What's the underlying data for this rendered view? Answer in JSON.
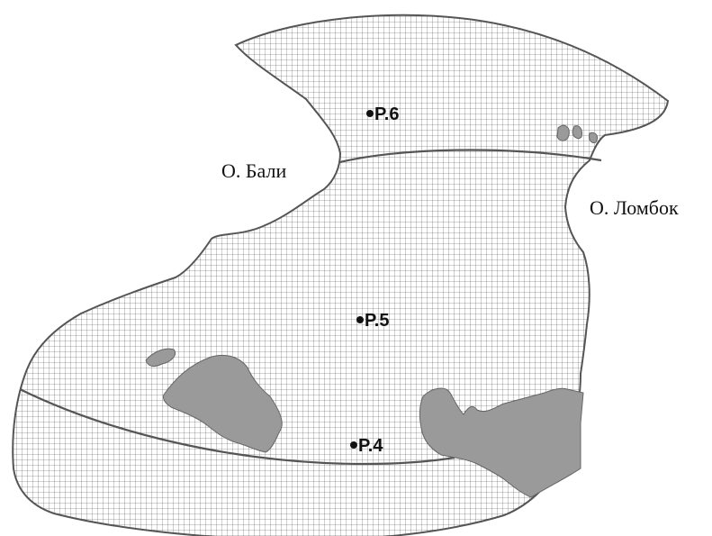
{
  "map": {
    "labels": {
      "bali": "О. Бали",
      "lombok": "О. Ломбок"
    },
    "points": [
      {
        "id": "p6",
        "label": "P.6"
      },
      {
        "id": "p5",
        "label": "P.5"
      },
      {
        "id": "p4",
        "label": "P.4"
      }
    ],
    "colors": {
      "mesh_line": "#3a3a3a",
      "boundary": "#555555",
      "land": "#9a9a9a",
      "background": "#ffffff"
    }
  }
}
